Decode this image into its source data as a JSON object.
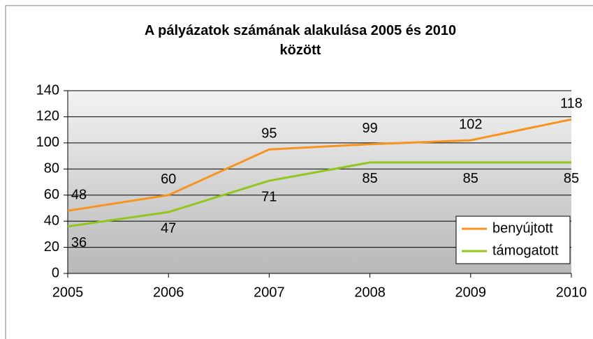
{
  "chart_data": {
    "type": "line",
    "title": "A pályázatok számának alakulása 2005 és 2010 között",
    "categories": [
      "2005",
      "2006",
      "2007",
      "2008",
      "2009",
      "2010"
    ],
    "series": [
      {
        "name": "benyújtott",
        "color": "#f7941d",
        "values": [
          48,
          60,
          95,
          99,
          102,
          118
        ]
      },
      {
        "name": "támogatott",
        "color": "#92c51e",
        "values": [
          36,
          47,
          71,
          85,
          85,
          85
        ]
      }
    ],
    "ylim": [
      0,
      140
    ],
    "yticks": [
      0,
      20,
      40,
      60,
      80,
      100,
      120,
      140
    ],
    "grid": true,
    "legend": "lower right"
  }
}
